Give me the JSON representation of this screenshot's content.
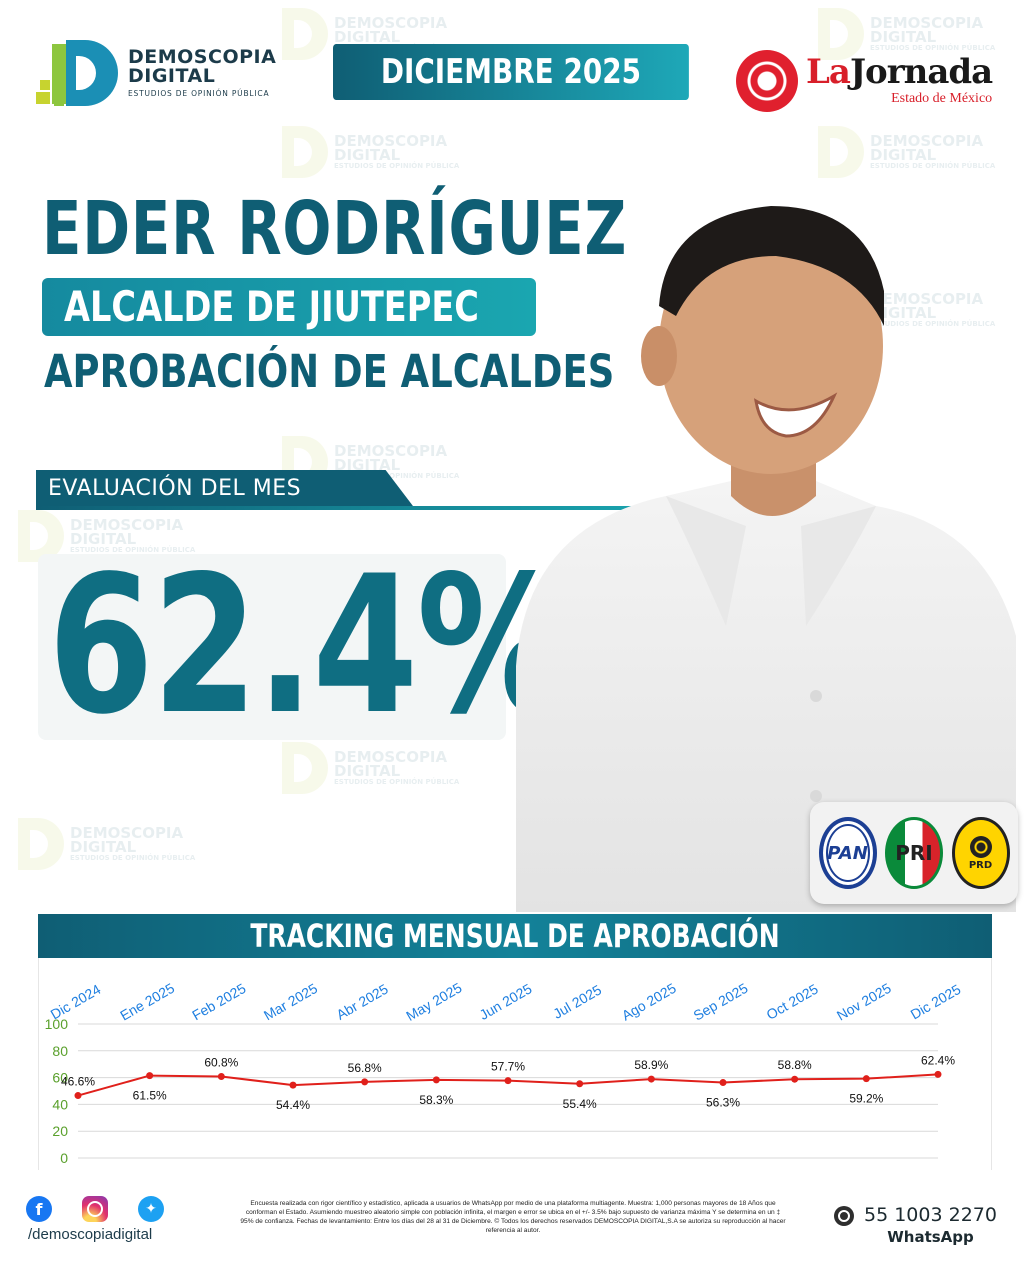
{
  "brand": {
    "name": "DEMOSCOPIA",
    "name2": "DIGITAL",
    "tagline": "ESTUDIOS DE OPINIÓN PÚBLICA"
  },
  "header": {
    "date": "DICIEMBRE 2025",
    "partner_name_a": "La",
    "partner_name_b": "Jornada",
    "partner_sub": "Estado de México"
  },
  "subject": {
    "name": "EDER RODRÍGUEZ",
    "role": "ALCALDE DE JIUTEPEC",
    "subtitle": "APROBACIÓN DE ALCALDES"
  },
  "evaluation": {
    "label": "EVALUACIÓN DEL MES",
    "value": "62.4%"
  },
  "parties": [
    "PAN",
    "PRI",
    "PRD"
  ],
  "tracking": {
    "title": "TRACKING MENSUAL DE APROBACIÓN"
  },
  "chart_data": {
    "type": "line",
    "title": "TRACKING MENSUAL DE APROBACIÓN",
    "categories": [
      "Dic 2024",
      "Ene 2025",
      "Feb 2025",
      "Mar 2025",
      "Abr 2025",
      "May 2025",
      "Jun 2025",
      "Jul 2025",
      "Ago 2025",
      "Sep 2025",
      "Oct 2025",
      "Nov 2025",
      "Dic 2025"
    ],
    "values": [
      46.6,
      61.5,
      60.8,
      54.4,
      56.8,
      58.3,
      57.7,
      55.4,
      58.9,
      56.3,
      58.8,
      59.2,
      62.4
    ],
    "labels": [
      "46.6%",
      "61.5%",
      "60.8%",
      "54.4%",
      "56.8%",
      "58.3%",
      "57.7%",
      "55.4%",
      "58.9%",
      "56.3%",
      "58.8%",
      "59.2%",
      "62.4%"
    ],
    "yticks": [
      0,
      20,
      40,
      60,
      80,
      100
    ],
    "ylim": [
      0,
      100
    ],
    "xaxis_position": "top",
    "grid": true,
    "line_color": "#e0201b",
    "category_color": "#1f7fe0",
    "ytick_color": "#5aa02c"
  },
  "footer": {
    "handle": "/demoscopiadigital",
    "disclaimer": "Encuesta realizada con rigor científico y estadístico, aplicada a usuarios de WhatsApp por medio de una plataforma multiagente. Muestra: 1,000 personas mayores de 18 Años que conforman el Estado. Asumiendo muestreo aleatorio simple con población infinita, el margen e error se ubica en el +/- 3.5% bajo supuesto de varianza máxima Y se determina en un ‡ 95% de confianza. Fechas de levantamiento: Entre los días del 28 al 31 de Diciembre. © Todos los derechos reservados DEMOSCOPIA DIGITAL,S.A se autoriza su reproducción al hacer referencia al autor.",
    "phone": "55 1003 2270",
    "phone_label": "WhatsApp"
  },
  "colors": {
    "primary": "#0f5e74",
    "accent": "#1aa6b0",
    "brand_green": "#8dc63f"
  }
}
